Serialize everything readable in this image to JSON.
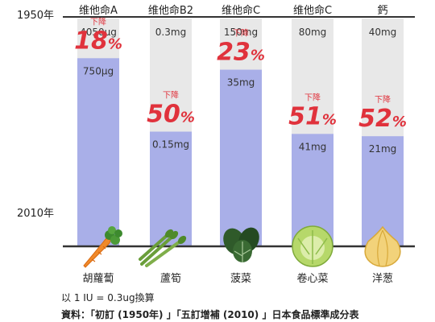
{
  "chart_data": {
    "type": "bar",
    "y_labels": {
      "top": "1950年",
      "bottom": "2010年"
    },
    "decrease_label": "下降",
    "categories": [
      {
        "nutrient": "维他命A",
        "food": "胡蘿蔔",
        "value_1950": "4050μg",
        "value_2010": "750μg",
        "decrease_pct": 18,
        "icon": "carrot-icon"
      },
      {
        "nutrient": "维他命B2",
        "food": "蘆筍",
        "value_1950": "0.3mg",
        "value_2010": "0.15mg",
        "decrease_pct": 50,
        "icon": "asparagus-icon"
      },
      {
        "nutrient": "维他命C",
        "food": "菠菜",
        "value_1950": "150mg",
        "value_2010": "35mg",
        "decrease_pct": 23,
        "icon": "spinach-icon"
      },
      {
        "nutrient": "维他命C",
        "food": "卷心菜",
        "value_1950": "80mg",
        "value_2010": "41mg",
        "decrease_pct": 51,
        "icon": "cabbage-icon"
      },
      {
        "nutrient": "鈣",
        "food": "洋葱",
        "value_1950": "40mg",
        "value_2010": "21mg",
        "decrease_pct": 52,
        "icon": "onion-icon"
      }
    ],
    "colors": {
      "bar_1950": "#e8e8e8",
      "bar_2010": "#a9afe8",
      "decrease": "#e0323c",
      "axis": "#333333"
    }
  },
  "footer": {
    "note": "以 1 IU = 0.3ug換算",
    "source": "資料：「初訂 (1950年) 」「五訂增補 (2010) 」日本食品標準成分表"
  }
}
